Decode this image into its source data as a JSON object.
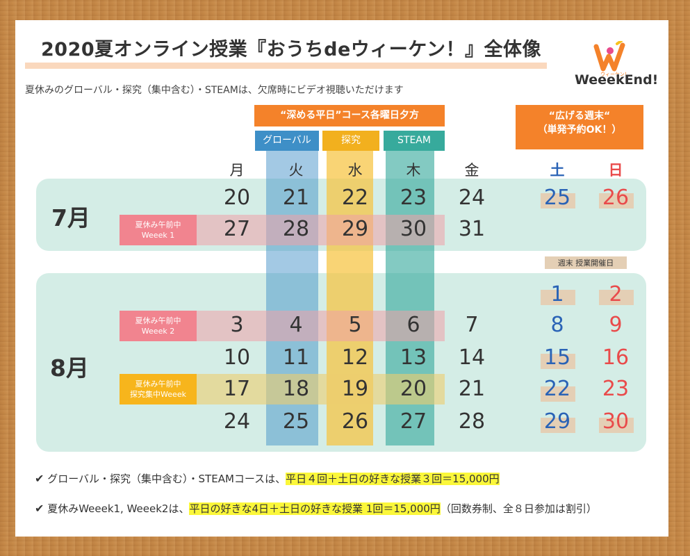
{
  "title": "2020夏オンライン授業『おうちdeウィーケン！』全体像",
  "subtitle": "夏休みのグローバル・探究（集中含む）・STEAMは、欠席時にビデオ視聴いただけます",
  "logo": {
    "brand": "WeeekEnd!",
    "small": "ウィーケン！",
    "letter": "W"
  },
  "course_header": "“深める平日”コース各曜日夕方",
  "weekend_header": {
    "line1": "“広げる週末“",
    "line2": "（単発予約OK！）"
  },
  "tabs": {
    "global": "グローバル",
    "tankyu": "探究",
    "steam": "STEAM"
  },
  "days": {
    "mon": "月",
    "tue": "火",
    "wed": "水",
    "thu": "木",
    "fri": "金",
    "sat": "土",
    "sun": "日"
  },
  "months": {
    "july": "7月",
    "august": "8月"
  },
  "july": {
    "week1": [
      "20",
      "21",
      "22",
      "23",
      "24",
      "25",
      "26"
    ],
    "week2": [
      "27",
      "28",
      "29",
      "30",
      "31"
    ]
  },
  "august": {
    "week0": [
      "1",
      "2"
    ],
    "week1": [
      "3",
      "4",
      "5",
      "6",
      "7",
      "8",
      "9"
    ],
    "week2": [
      "10",
      "11",
      "12",
      "13",
      "14",
      "15",
      "16"
    ],
    "week3": [
      "17",
      "18",
      "19",
      "20",
      "21",
      "22",
      "23"
    ],
    "week4": [
      "24",
      "25",
      "26",
      "27",
      "28",
      "29",
      "30"
    ]
  },
  "labels": {
    "weeek1": {
      "line1": "夏休み午前中",
      "line2": "Weeek 1"
    },
    "weeek2": {
      "line1": "夏休み午前中",
      "line2": "Weeek 2"
    },
    "tankyu": {
      "line1": "夏休み午前中",
      "line2": "探究集中Weeek"
    }
  },
  "weekend_legend": "週末 授業開催日",
  "notes": {
    "note1_prefix": "グローバル・探究（集中含む）・STEAMコースは、",
    "note1_highlight": "平日４回＋土日の好きな授業３回＝15,000円",
    "note2_prefix": "夏休みWeeek1, Weeek2は、",
    "note2_highlight": "平日の好きな4日＋土日の好きな授業 1回＝15,000円",
    "note2_suffix": "（回数券制、全８日参加は割引）"
  },
  "colors": {
    "orange": "#f4822a",
    "global": "#3e8fc7",
    "tankyu": "#f2b01e",
    "steam": "#37aa9c",
    "saturday": "#2a63b6",
    "sunday": "#e94b4b",
    "pink_label": "#f1848f",
    "yellow_label": "#f7b51c"
  }
}
